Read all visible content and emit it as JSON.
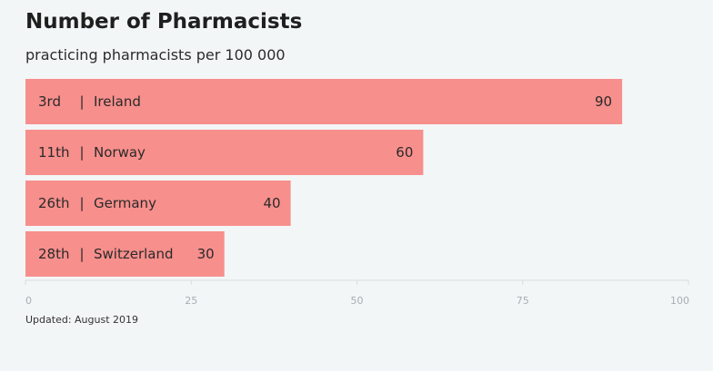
{
  "chart_data": {
    "type": "bar",
    "orientation": "horizontal",
    "title": "Number of Pharmacists",
    "subtitle": "practicing pharmacists per 100 000",
    "bar_color": "#f78f8c",
    "categories": [
      {
        "rank": "3rd",
        "country": "Ireland",
        "value": 90
      },
      {
        "rank": "11th",
        "country": "Norway",
        "value": 60
      },
      {
        "rank": "26th",
        "country": "Germany",
        "value": 40
      },
      {
        "rank": "28th",
        "country": "Switzerland",
        "value": 30
      }
    ],
    "separator": "|",
    "xlim": [
      0,
      100
    ],
    "xticks": [
      0,
      25,
      50,
      75,
      100
    ],
    "grid": false,
    "footnote": "Updated: August 2019"
  }
}
